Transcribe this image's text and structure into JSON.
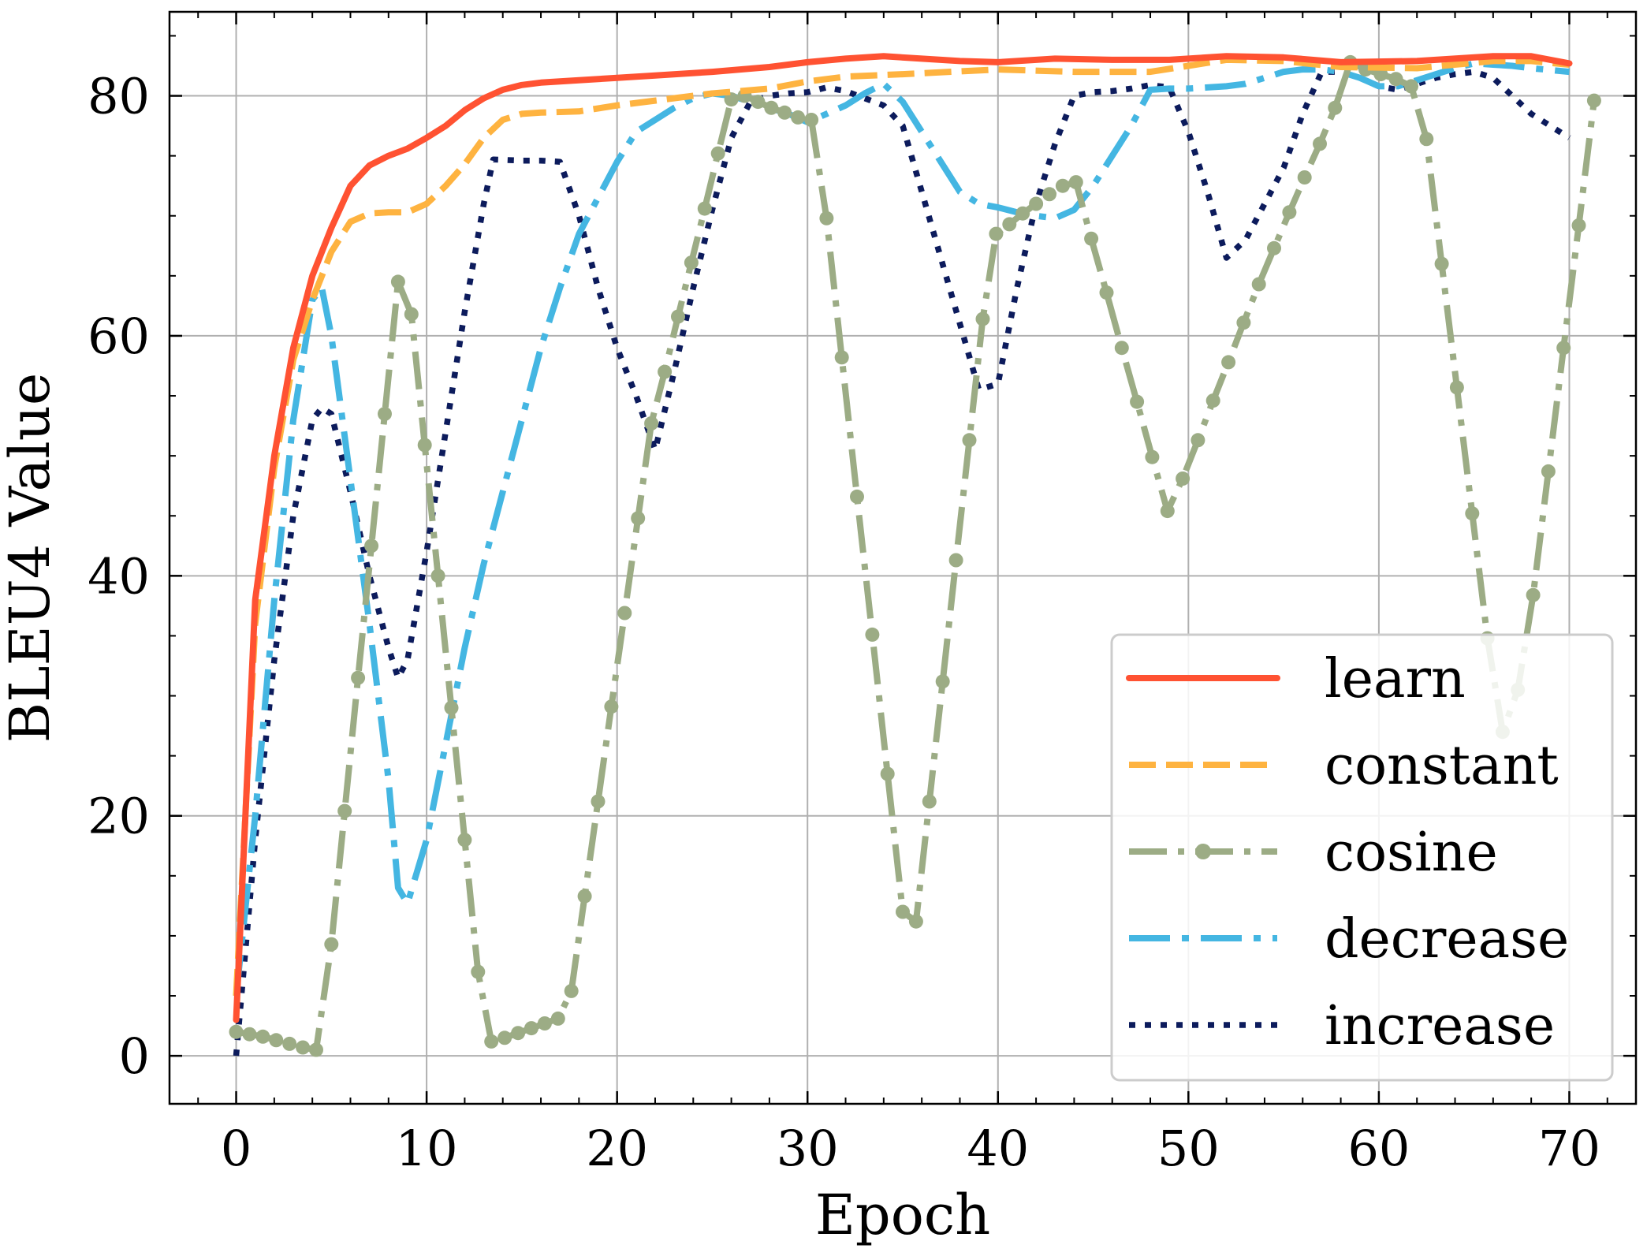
{
  "chart_data": {
    "type": "line",
    "xlabel": "Epoch",
    "ylabel": "BLEU4 Value",
    "xlim": [
      -3.5,
      73.5
    ],
    "ylim": [
      -4,
      87
    ],
    "xticks": [
      0,
      10,
      20,
      30,
      40,
      50,
      60,
      70
    ],
    "yticks": [
      0,
      20,
      40,
      60,
      80
    ],
    "grid": true,
    "legend_position": "lower-right",
    "series": [
      {
        "name": "learn",
        "color": "#ff5232",
        "style": "solid",
        "points": [
          [
            0,
            3
          ],
          [
            1,
            38
          ],
          [
            2,
            50
          ],
          [
            3,
            59
          ],
          [
            4,
            65
          ],
          [
            5,
            69
          ],
          [
            6,
            72.5
          ],
          [
            7,
            74.2
          ],
          [
            8,
            75
          ],
          [
            9,
            75.6
          ],
          [
            10,
            76.5
          ],
          [
            11,
            77.5
          ],
          [
            12,
            78.8
          ],
          [
            13,
            79.8
          ],
          [
            14,
            80.5
          ],
          [
            15,
            80.9
          ],
          [
            16,
            81.1
          ],
          [
            18,
            81.3
          ],
          [
            20,
            81.5
          ],
          [
            22,
            81.7
          ],
          [
            25,
            82
          ],
          [
            28,
            82.4
          ],
          [
            30,
            82.8
          ],
          [
            32,
            83.1
          ],
          [
            34,
            83.3
          ],
          [
            36,
            83.1
          ],
          [
            38,
            82.9
          ],
          [
            40,
            82.8
          ],
          [
            43,
            83.1
          ],
          [
            46,
            83
          ],
          [
            49,
            83
          ],
          [
            52,
            83.3
          ],
          [
            55,
            83.2
          ],
          [
            58,
            82.8
          ],
          [
            62,
            82.9
          ],
          [
            66,
            83.3
          ],
          [
            68,
            83.3
          ],
          [
            70,
            82.7
          ]
        ]
      },
      {
        "name": "constant",
        "color": "#feb340",
        "style": "dashed",
        "points": [
          [
            0,
            5
          ],
          [
            1,
            36
          ],
          [
            2,
            49
          ],
          [
            3,
            58
          ],
          [
            4,
            63
          ],
          [
            5,
            67
          ],
          [
            6,
            69.5
          ],
          [
            7,
            70.2
          ],
          [
            8,
            70.3
          ],
          [
            9,
            70.3
          ],
          [
            10,
            71
          ],
          [
            11,
            72.5
          ],
          [
            12,
            74.3
          ],
          [
            13,
            76.5
          ],
          [
            14,
            78
          ],
          [
            15,
            78.5
          ],
          [
            16,
            78.6
          ],
          [
            18,
            78.7
          ],
          [
            20,
            79.2
          ],
          [
            22,
            79.6
          ],
          [
            25,
            80.2
          ],
          [
            28,
            80.6
          ],
          [
            30,
            81.2
          ],
          [
            32,
            81.6
          ],
          [
            35,
            81.8
          ],
          [
            40,
            82.2
          ],
          [
            44,
            82
          ],
          [
            48,
            82
          ],
          [
            52,
            83
          ],
          [
            55,
            82.9
          ],
          [
            58,
            82.4
          ],
          [
            62,
            82.3
          ],
          [
            66,
            82.9
          ],
          [
            68,
            82.9
          ],
          [
            70,
            82.6
          ]
        ]
      },
      {
        "name": "cosine",
        "color": "#9cac85",
        "style": "dashdot-marker",
        "points": [
          [
            0,
            2
          ],
          [
            0.7,
            1.8
          ],
          [
            1.4,
            1.6
          ],
          [
            2.1,
            1.3
          ],
          [
            2.8,
            1.0
          ],
          [
            3.5,
            0.7
          ],
          [
            4.2,
            0.5
          ],
          [
            5,
            9.3
          ],
          [
            5.7,
            20.4
          ],
          [
            6.4,
            31.5
          ],
          [
            7.1,
            42.5
          ],
          [
            7.8,
            53.5
          ],
          [
            8.5,
            64.5
          ],
          [
            9.2,
            61.8
          ],
          [
            9.9,
            50.9
          ],
          [
            10.6,
            40.0
          ],
          [
            11.3,
            29.0
          ],
          [
            12,
            18.0
          ],
          [
            12.7,
            7.0
          ],
          [
            13.4,
            1.2
          ],
          [
            14.1,
            1.5
          ],
          [
            14.8,
            1.9
          ],
          [
            15.5,
            2.3
          ],
          [
            16.2,
            2.7
          ],
          [
            16.9,
            3.1
          ],
          [
            17.6,
            5.4
          ],
          [
            18.3,
            13.3
          ],
          [
            19,
            21.2
          ],
          [
            19.7,
            29.1
          ],
          [
            20.4,
            36.9
          ],
          [
            21.1,
            44.8
          ],
          [
            21.8,
            52.7
          ],
          [
            22.5,
            57.0
          ],
          [
            23.2,
            61.6
          ],
          [
            23.9,
            66.1
          ],
          [
            24.6,
            70.6
          ],
          [
            25.3,
            75.2
          ],
          [
            26,
            79.7
          ],
          [
            26.7,
            80.0
          ],
          [
            27.4,
            79.5
          ],
          [
            28.1,
            79.0
          ],
          [
            28.8,
            78.6
          ],
          [
            29.5,
            78.2
          ],
          [
            30.2,
            78.0
          ],
          [
            31,
            69.8
          ],
          [
            31.8,
            58.2
          ],
          [
            32.6,
            46.6
          ],
          [
            33.4,
            35.1
          ],
          [
            34.2,
            23.5
          ],
          [
            35,
            12.0
          ],
          [
            35.7,
            11.2
          ],
          [
            36.4,
            21.2
          ],
          [
            37.1,
            31.2
          ],
          [
            37.8,
            41.3
          ],
          [
            38.5,
            51.3
          ],
          [
            39.2,
            61.4
          ],
          [
            39.9,
            68.5
          ],
          [
            40.6,
            69.3
          ],
          [
            41.3,
            70.2
          ],
          [
            42,
            71
          ],
          [
            42.7,
            71.8
          ],
          [
            43.4,
            72.5
          ],
          [
            44.1,
            72.8
          ],
          [
            44.9,
            68.1
          ],
          [
            45.7,
            63.6
          ],
          [
            46.5,
            59.0
          ],
          [
            47.3,
            54.5
          ],
          [
            48.1,
            49.9
          ],
          [
            48.9,
            45.4
          ],
          [
            49.7,
            48.1
          ],
          [
            50.5,
            51.3
          ],
          [
            51.3,
            54.6
          ],
          [
            52.1,
            57.8
          ],
          [
            52.9,
            61.1
          ],
          [
            53.7,
            64.3
          ],
          [
            54.5,
            67.3
          ],
          [
            55.3,
            70.3
          ],
          [
            56.1,
            73.2
          ],
          [
            56.9,
            76.0
          ],
          [
            57.7,
            79.0
          ],
          [
            58.5,
            82.8
          ],
          [
            59.3,
            82.2
          ],
          [
            60.1,
            81.8
          ],
          [
            60.9,
            81.4
          ],
          [
            61.7,
            80.8
          ],
          [
            62.5,
            76.4
          ],
          [
            63.3,
            66.0
          ],
          [
            64.1,
            55.7
          ],
          [
            64.9,
            45.2
          ],
          [
            65.7,
            34.8
          ],
          [
            66.5,
            27.0
          ],
          [
            67.3,
            30.5
          ],
          [
            68.1,
            38.4
          ],
          [
            68.9,
            48.7
          ],
          [
            69.7,
            59.0
          ],
          [
            70.5,
            69.2
          ],
          [
            71.3,
            79.6
          ]
        ]
      },
      {
        "name": "decrease",
        "color": "#44b6e2",
        "style": "dashdot",
        "points": [
          [
            0,
            5
          ],
          [
            1,
            20
          ],
          [
            2,
            38
          ],
          [
            3,
            53
          ],
          [
            4,
            63
          ],
          [
            4.5,
            64
          ],
          [
            5,
            60
          ],
          [
            6,
            48
          ],
          [
            7,
            36
          ],
          [
            8,
            23
          ],
          [
            8.5,
            14
          ],
          [
            9,
            12.7
          ],
          [
            10,
            18
          ],
          [
            11,
            26
          ],
          [
            12,
            34
          ],
          [
            13,
            41
          ],
          [
            14,
            47
          ],
          [
            15,
            53
          ],
          [
            16,
            59
          ],
          [
            17,
            64
          ],
          [
            18,
            68.5
          ],
          [
            19,
            71.5
          ],
          [
            20,
            74.5
          ],
          [
            21,
            77
          ],
          [
            22,
            78
          ],
          [
            23,
            79
          ],
          [
            24,
            79.8
          ],
          [
            25,
            80.2
          ],
          [
            26,
            80
          ],
          [
            27,
            79.5
          ],
          [
            28,
            79
          ],
          [
            29,
            78.5
          ],
          [
            30,
            77.8
          ],
          [
            31,
            78.5
          ],
          [
            32,
            79.2
          ],
          [
            33,
            80.2
          ],
          [
            34,
            81
          ],
          [
            35,
            79.5
          ],
          [
            36,
            77
          ],
          [
            37,
            74.5
          ],
          [
            38,
            72
          ],
          [
            39,
            71
          ],
          [
            40,
            70.7
          ],
          [
            41,
            70.3
          ],
          [
            42,
            70
          ],
          [
            43,
            69.8
          ],
          [
            44,
            70.5
          ],
          [
            45,
            72.5
          ],
          [
            46,
            75
          ],
          [
            47,
            77.5
          ],
          [
            48,
            80.5
          ],
          [
            49,
            80.6
          ],
          [
            50,
            80.6
          ],
          [
            51,
            80.7
          ],
          [
            52,
            80.8
          ],
          [
            53,
            81
          ],
          [
            54,
            81.5
          ],
          [
            55,
            82
          ],
          [
            56,
            82.2
          ],
          [
            57,
            82.2
          ],
          [
            58,
            82
          ],
          [
            59,
            81.5
          ],
          [
            60,
            80.8
          ],
          [
            61,
            80.8
          ],
          [
            62,
            81.3
          ],
          [
            63,
            81.8
          ],
          [
            64,
            82.3
          ],
          [
            65,
            82.7
          ],
          [
            66,
            82.6
          ],
          [
            67,
            82.5
          ],
          [
            68,
            82.3
          ],
          [
            70,
            82
          ]
        ]
      },
      {
        "name": "increase",
        "color": "#0c1b5c",
        "style": "dotted",
        "points": [
          [
            0,
            0
          ],
          [
            1,
            18
          ],
          [
            2,
            33
          ],
          [
            3,
            45
          ],
          [
            4,
            53
          ],
          [
            4.5,
            54
          ],
          [
            5,
            53.5
          ],
          [
            6,
            47
          ],
          [
            7,
            40
          ],
          [
            8,
            34
          ],
          [
            8.5,
            31.5
          ],
          [
            9,
            33
          ],
          [
            10,
            42
          ],
          [
            11,
            52
          ],
          [
            12,
            62
          ],
          [
            13,
            71
          ],
          [
            13.5,
            74.7
          ],
          [
            15,
            74.6
          ],
          [
            16,
            74.6
          ],
          [
            17,
            74.5
          ],
          [
            18,
            70
          ],
          [
            19,
            64
          ],
          [
            20,
            59
          ],
          [
            21,
            55
          ],
          [
            22,
            50.5
          ],
          [
            23,
            57
          ],
          [
            24,
            64
          ],
          [
            25,
            70.5
          ],
          [
            26,
            76.5
          ],
          [
            27,
            79.5
          ],
          [
            28,
            80
          ],
          [
            29,
            80.2
          ],
          [
            30,
            80.3
          ],
          [
            31,
            80.7
          ],
          [
            32,
            80.4
          ],
          [
            33,
            79.8
          ],
          [
            34,
            79.2
          ],
          [
            35,
            77.5
          ],
          [
            36,
            72
          ],
          [
            37,
            66.5
          ],
          [
            38,
            61
          ],
          [
            39,
            55.5
          ],
          [
            40,
            56
          ],
          [
            41,
            64
          ],
          [
            42,
            71
          ],
          [
            43,
            76
          ],
          [
            44,
            80
          ],
          [
            45,
            80.3
          ],
          [
            46,
            80.4
          ],
          [
            47,
            80.6
          ],
          [
            48,
            80.9
          ],
          [
            49,
            80.7
          ],
          [
            50,
            77
          ],
          [
            51,
            72
          ],
          [
            52,
            66.5
          ],
          [
            53,
            68
          ],
          [
            54,
            71
          ],
          [
            55,
            74
          ],
          [
            56,
            78.5
          ],
          [
            57,
            82
          ],
          [
            58,
            82
          ],
          [
            59,
            81.5
          ],
          [
            60,
            80.8
          ],
          [
            61,
            80.5
          ],
          [
            62,
            81
          ],
          [
            63,
            81.5
          ],
          [
            64,
            81.8
          ],
          [
            65,
            82
          ],
          [
            66,
            81.5
          ],
          [
            67,
            80
          ],
          [
            68,
            78.5
          ],
          [
            69,
            77.5
          ],
          [
            70,
            76.5
          ]
        ]
      }
    ]
  }
}
